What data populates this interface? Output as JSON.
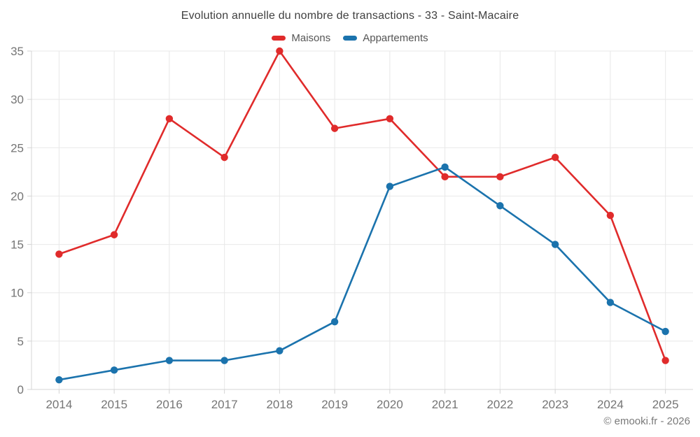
{
  "header": {
    "title": "Evolution annuelle du nombre de transactions - 33 - Saint-Macaire"
  },
  "footer": {
    "credit": "© emooki.fr - 2026"
  },
  "colors": {
    "maisons": "#e02b2b",
    "appartements": "#1b73ad",
    "title_text": "#3f3f3f",
    "axis_text": "#757575",
    "grid_line": "#e8e8e8",
    "axis_line": "#d4d4d4"
  },
  "chart_data": {
    "type": "line",
    "title": "Evolution annuelle du nombre de transactions - 33 - Saint-Macaire",
    "categories": [
      "2014",
      "2015",
      "2016",
      "2017",
      "2018",
      "2019",
      "2020",
      "2021",
      "2022",
      "2023",
      "2024",
      "2025"
    ],
    "series": [
      {
        "name": "Maisons",
        "color": "#e02b2b",
        "values": [
          14,
          16,
          28,
          24,
          35,
          27,
          28,
          22,
          22,
          24,
          18,
          3
        ]
      },
      {
        "name": "Appartements",
        "color": "#1b73ad",
        "values": [
          1,
          2,
          3,
          3,
          4,
          7,
          21,
          23,
          19,
          15,
          9,
          6
        ]
      }
    ],
    "xlabel": "",
    "ylabel": "",
    "ylim": [
      0,
      35
    ],
    "y_ticks": [
      0,
      5,
      10,
      15,
      20,
      25,
      30,
      35
    ],
    "grid": "on",
    "legend_position": "top"
  }
}
